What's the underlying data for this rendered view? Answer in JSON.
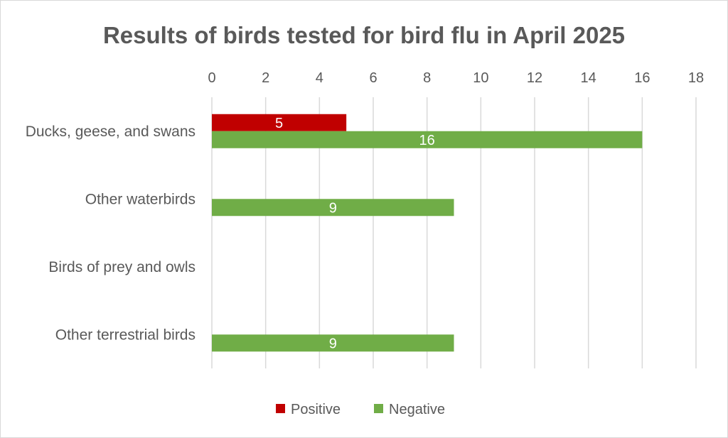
{
  "chart_data": {
    "type": "bar",
    "orientation": "horizontal",
    "title": "Results of birds tested for bird flu in April 2025",
    "categories": [
      "Ducks, geese, and swans",
      "Other waterbirds",
      "Birds of prey and owls",
      "Other terrestrial birds"
    ],
    "series": [
      {
        "name": "Positive",
        "color": "#c00000",
        "values": [
          5,
          0,
          0,
          0
        ]
      },
      {
        "name": "Negative",
        "color": "#70ad47",
        "values": [
          16,
          9,
          0,
          9
        ]
      }
    ],
    "xlim": [
      0,
      18
    ],
    "xticks": [
      0,
      2,
      4,
      6,
      8,
      10,
      12,
      14,
      16,
      18
    ],
    "x_axis_position": "top",
    "grid": true,
    "legend": "bottom",
    "data_labels": true
  }
}
